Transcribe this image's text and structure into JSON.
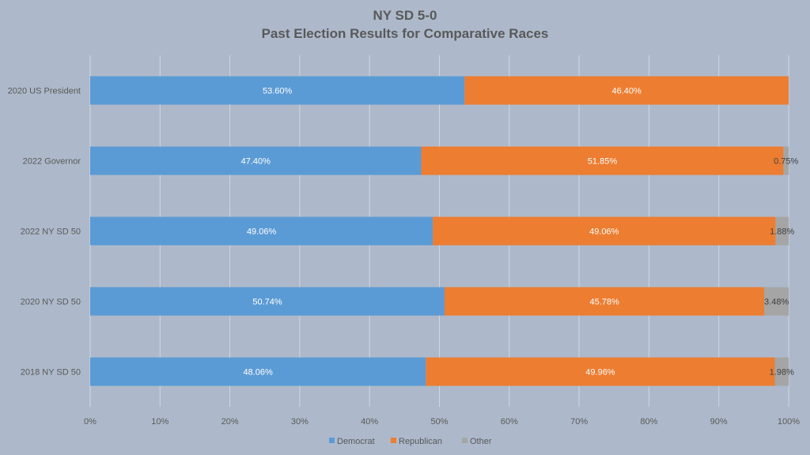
{
  "chart_data": {
    "type": "bar",
    "orientation": "horizontal",
    "stacked": "percent",
    "title": "NY SD 5-0",
    "subtitle": "Past Election Results for Comparative Races",
    "xlabel": "",
    "ylabel": "",
    "xlim": [
      0,
      100
    ],
    "x_ticks": [
      "0%",
      "10%",
      "20%",
      "30%",
      "40%",
      "50%",
      "60%",
      "70%",
      "80%",
      "90%",
      "100%"
    ],
    "grid": true,
    "legend_position": "bottom",
    "categories": [
      "2020 US President",
      "2022 Governor",
      "2022 NY SD 50",
      "2020 NY SD 50",
      "2018 NY SD 50"
    ],
    "series": [
      {
        "name": "Democrat",
        "color": "#5b9bd5",
        "values": [
          53.6,
          47.4,
          49.06,
          50.74,
          48.06
        ],
        "labels": [
          "53.60%",
          "47.40%",
          "49.06%",
          "50.74%",
          "48.06%"
        ]
      },
      {
        "name": "Republican",
        "color": "#ed7d31",
        "values": [
          46.4,
          51.85,
          49.06,
          45.78,
          49.96
        ],
        "labels": [
          "46.40%",
          "51.85%",
          "49.06%",
          "45.78%",
          "49.96%"
        ]
      },
      {
        "name": "Other",
        "color": "#a5a5a5",
        "values": [
          0,
          0.75,
          1.88,
          3.48,
          1.98
        ],
        "labels": [
          "",
          "0.75%",
          "1.88%",
          "3.48%",
          "1.98%"
        ]
      }
    ]
  }
}
